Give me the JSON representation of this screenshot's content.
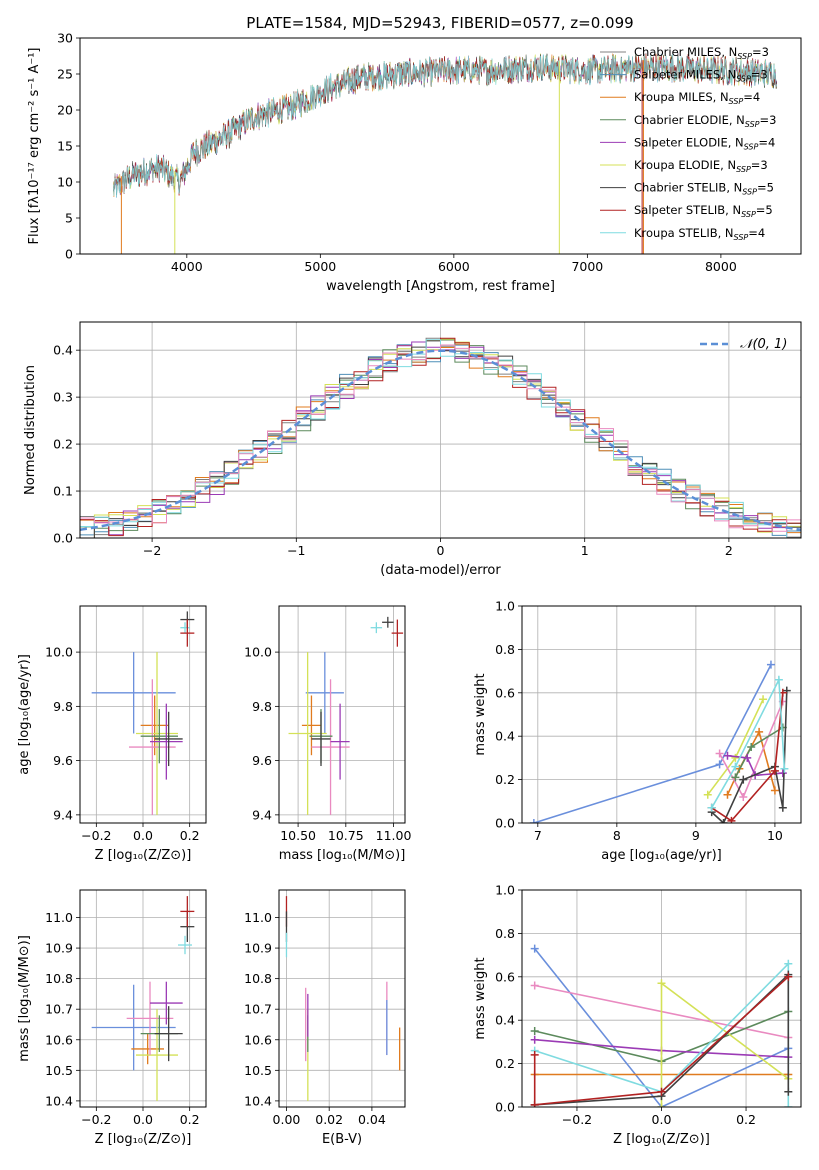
{
  "figure_title": "PLATE=1584, MJD=52943, FIBERID=0577, z=0.099",
  "colors": {
    "chabrier_miles": "#808080",
    "salpeter_miles": "#4f8fb8",
    "kroupa_miles": "#e07b1f",
    "chabrier_elodie": "#5c8a5c",
    "salpeter_elodie": "#9b3bb5",
    "kroupa_elodie": "#d4e157",
    "chabrier_stelib": "#404040",
    "salpeter_stelib": "#b22222",
    "kroupa_stelib": "#7fdbe0",
    "blue": "#6a8fdc",
    "pink": "#e98ac0",
    "dash": "#5b8fd6"
  },
  "legend_entries": [
    {
      "text": "Chabrier MILES, N",
      "sub": "SSP",
      "suffix": "=3",
      "color": "#808080"
    },
    {
      "text": "Salpeter MILES, N",
      "sub": "SSP",
      "suffix": "=3",
      "color": "#4f8fb8"
    },
    {
      "text": "Kroupa MILES, N",
      "sub": "SSP",
      "suffix": "=4",
      "color": "#e07b1f"
    },
    {
      "text": "Chabrier ELODIE, N",
      "sub": "SSP",
      "suffix": "=3",
      "color": "#5c8a5c"
    },
    {
      "text": "Salpeter ELODIE, N",
      "sub": "SSP",
      "suffix": "=4",
      "color": "#9b3bb5"
    },
    {
      "text": "Kroupa ELODIE, N",
      "sub": "SSP",
      "suffix": "=3",
      "color": "#d4e157"
    },
    {
      "text": "Chabrier STELIB, N",
      "sub": "SSP",
      "suffix": "=5",
      "color": "#404040"
    },
    {
      "text": "Salpeter STELIB, N",
      "sub": "SSP",
      "suffix": "=5",
      "color": "#b22222"
    },
    {
      "text": "Kroupa STELIB, N",
      "sub": "SSP",
      "suffix": "=4",
      "color": "#7fdbe0"
    }
  ],
  "chart_data": [
    {
      "id": "spectrum",
      "type": "line",
      "xlabel": "wavelength [Angstrom, rest frame]",
      "ylabel": "Flux [fλ10⁻¹⁷ erg cm⁻² s⁻¹ A⁻¹]",
      "xlim": [
        3200,
        8600
      ],
      "ylim": [
        0,
        30
      ],
      "xticks": [
        4000,
        5000,
        6000,
        7000,
        8000
      ],
      "yticks": [
        0,
        5,
        10,
        15,
        20,
        25,
        30
      ],
      "continuum": [
        [
          3450,
          9
        ],
        [
          3600,
          11
        ],
        [
          3800,
          12
        ],
        [
          3950,
          10
        ],
        [
          4050,
          14
        ],
        [
          4300,
          16.5
        ],
        [
          4500,
          19
        ],
        [
          4800,
          20.5
        ],
        [
          5000,
          22.5
        ],
        [
          5300,
          24.5
        ],
        [
          5600,
          25
        ],
        [
          6000,
          25.5
        ],
        [
          6300,
          25.5
        ],
        [
          6600,
          26
        ],
        [
          7000,
          25.5
        ],
        [
          7500,
          26
        ],
        [
          8000,
          25.5
        ],
        [
          8400,
          25
        ]
      ],
      "range": [
        3450,
        8420
      ],
      "drops": [
        {
          "x": 3510,
          "color": "#e07b1f"
        },
        {
          "x": 3910,
          "color": "#d4e157"
        },
        {
          "x": 6790,
          "color": "#d4e157"
        },
        {
          "x": 7410,
          "color": "#b22222"
        },
        {
          "x": 7420,
          "color": "#e07b1f"
        }
      ]
    },
    {
      "id": "residuals",
      "type": "histogram",
      "xlabel": "(data-model)/error",
      "ylabel": "Normed distribution",
      "xlim": [
        -2.5,
        2.5
      ],
      "ylim": [
        0,
        0.46
      ],
      "xticks": [
        -2,
        -1,
        0,
        1,
        2
      ],
      "yticks": [
        0.0,
        0.1,
        0.2,
        0.3,
        0.4
      ],
      "bin_width": 0.1,
      "legend": "𝒩(0, 1)",
      "series_colors": [
        "#808080",
        "#4f8fb8",
        "#e07b1f",
        "#5c8a5c",
        "#9b3bb5",
        "#d4e157",
        "#404040",
        "#b22222",
        "#7fdbe0",
        "#e98ac0"
      ]
    },
    {
      "id": "age_vs_Z",
      "type": "errorbar",
      "xlabel": "Z [log₁₀(Z/Z⊙)]",
      "ylabel": "age  [log₁₀(age/yr)]",
      "xlim": [
        -0.27,
        0.27
      ],
      "ylim": [
        9.37,
        10.17
      ],
      "xticks": [
        -0.2,
        0.0,
        0.2
      ],
      "yticks": [
        9.4,
        9.6,
        9.8,
        10.0
      ],
      "points": [
        {
          "x": -0.04,
          "y": 9.85,
          "xe": 0.18,
          "ye": 0.15,
          "c": "#6a8fdc"
        },
        {
          "x": 0.05,
          "y": 9.73,
          "xe": 0.06,
          "ye": 0.11,
          "c": "#e07b1f"
        },
        {
          "x": 0.06,
          "y": 9.7,
          "xe": 0.09,
          "ye": 0.3,
          "c": "#d4e157"
        },
        {
          "x": 0.04,
          "y": 9.65,
          "xe": 0.1,
          "ye": 0.25,
          "c": "#e98ac0"
        },
        {
          "x": 0.07,
          "y": 9.69,
          "xe": 0.08,
          "ye": 0.1,
          "c": "#5c8a5c"
        },
        {
          "x": 0.1,
          "y": 9.67,
          "xe": 0.07,
          "ye": 0.14,
          "c": "#9b3bb5"
        },
        {
          "x": 0.11,
          "y": 9.68,
          "xe": 0.06,
          "ye": 0.1,
          "c": "#404040"
        },
        {
          "x": 0.19,
          "y": 10.12,
          "xe": 0.03,
          "ye": 0.03,
          "c": "#404040"
        },
        {
          "x": 0.18,
          "y": 10.09,
          "xe": 0.02,
          "ye": 0.02,
          "c": "#7fdbe0"
        },
        {
          "x": 0.19,
          "y": 10.07,
          "xe": 0.03,
          "ye": 0.05,
          "c": "#b22222"
        }
      ]
    },
    {
      "id": "age_vs_mass",
      "type": "errorbar",
      "xlabel": "mass [log₁₀(M/M⊙)]",
      "ylabel": "",
      "xlim": [
        10.4,
        11.06
      ],
      "ylim": [
        9.37,
        10.17
      ],
      "xticks": [
        10.5,
        10.75,
        11.0
      ],
      "yticks": [
        9.4,
        9.6,
        9.8,
        10.0
      ],
      "points": [
        {
          "x": 10.64,
          "y": 9.85,
          "xe": 0.1,
          "ye": 0.15,
          "c": "#6a8fdc"
        },
        {
          "x": 10.57,
          "y": 9.73,
          "xe": 0.05,
          "ye": 0.11,
          "c": "#e07b1f"
        },
        {
          "x": 10.55,
          "y": 9.7,
          "xe": 0.1,
          "ye": 0.3,
          "c": "#d4e157"
        },
        {
          "x": 10.67,
          "y": 9.65,
          "xe": 0.1,
          "ye": 0.25,
          "c": "#e98ac0"
        },
        {
          "x": 10.62,
          "y": 9.69,
          "xe": 0.06,
          "ye": 0.1,
          "c": "#5c8a5c"
        },
        {
          "x": 10.72,
          "y": 9.67,
          "xe": 0.05,
          "ye": 0.14,
          "c": "#9b3bb5"
        },
        {
          "x": 10.62,
          "y": 9.68,
          "xe": 0.05,
          "ye": 0.1,
          "c": "#404040"
        },
        {
          "x": 10.97,
          "y": 10.11,
          "xe": 0.03,
          "ye": 0.02,
          "c": "#404040"
        },
        {
          "x": 10.91,
          "y": 10.09,
          "xe": 0.03,
          "ye": 0.02,
          "c": "#7fdbe0"
        },
        {
          "x": 11.02,
          "y": 10.07,
          "xe": 0.03,
          "ye": 0.05,
          "c": "#b22222"
        }
      ]
    },
    {
      "id": "weight_vs_age",
      "type": "line",
      "xlabel": "age  [log₁₀(age/yr)]",
      "ylabel": "mass weight",
      "xlim": [
        6.8,
        10.33
      ],
      "ylim": [
        0,
        1
      ],
      "xticks": [
        7,
        8,
        9,
        10
      ],
      "yticks": [
        0.0,
        0.2,
        0.4,
        0.6,
        0.8,
        1.0
      ],
      "series": [
        {
          "c": "#6a8fdc",
          "pts": [
            [
              6.95,
              0.0
            ],
            [
              9.3,
              0.27
            ],
            [
              9.95,
              0.73
            ]
          ]
        },
        {
          "c": "#e07b1f",
          "pts": [
            [
              9.4,
              0.13
            ],
            [
              9.55,
              0.25
            ],
            [
              9.8,
              0.42
            ],
            [
              10.0,
              0.15
            ]
          ]
        },
        {
          "c": "#d4e157",
          "pts": [
            [
              9.15,
              0.13
            ],
            [
              9.5,
              0.3
            ],
            [
              9.85,
              0.57
            ]
          ]
        },
        {
          "c": "#e98ac0",
          "pts": [
            [
              9.3,
              0.32
            ],
            [
              9.6,
              0.12
            ],
            [
              10.1,
              0.56
            ]
          ]
        },
        {
          "c": "#5c8a5c",
          "pts": [
            [
              9.5,
              0.21
            ],
            [
              9.7,
              0.35
            ],
            [
              10.1,
              0.44
            ]
          ]
        },
        {
          "c": "#9b3bb5",
          "pts": [
            [
              9.4,
              0.31
            ],
            [
              9.65,
              0.3
            ],
            [
              9.75,
              0.22
            ],
            [
              10.1,
              0.23
            ]
          ]
        },
        {
          "c": "#404040",
          "pts": [
            [
              9.2,
              0.05
            ],
            [
              9.35,
              0.0
            ],
            [
              9.6,
              0.2
            ],
            [
              10.0,
              0.26
            ],
            [
              10.1,
              0.07
            ],
            [
              10.15,
              0.61
            ]
          ]
        },
        {
          "c": "#b22222",
          "pts": [
            [
              9.2,
              0.07
            ],
            [
              9.45,
              0.01
            ],
            [
              10.0,
              0.24
            ],
            [
              10.1,
              0.6
            ]
          ]
        },
        {
          "c": "#7fdbe0",
          "pts": [
            [
              9.2,
              0.07
            ],
            [
              9.5,
              0.26
            ],
            [
              10.05,
              0.66
            ],
            [
              10.12,
              0.25
            ]
          ]
        }
      ]
    },
    {
      "id": "mass_vs_Z",
      "type": "errorbar",
      "xlabel": "Z [log₁₀(Z/Z⊙)]",
      "ylabel": "mass [log₁₀(M/M⊙)]",
      "xlim": [
        -0.27,
        0.27
      ],
      "ylim": [
        10.38,
        11.09
      ],
      "xticks": [
        -0.2,
        0.0,
        0.2
      ],
      "yticks": [
        10.4,
        10.5,
        10.6,
        10.7,
        10.8,
        10.9,
        11.0
      ],
      "points": [
        {
          "x": -0.04,
          "y": 10.64,
          "xe": 0.18,
          "ye": 0.14,
          "c": "#6a8fdc"
        },
        {
          "x": 0.02,
          "y": 10.57,
          "xe": 0.07,
          "ye": 0.05,
          "c": "#e07b1f"
        },
        {
          "x": 0.06,
          "y": 10.55,
          "xe": 0.09,
          "ye": 0.15,
          "c": "#d4e157"
        },
        {
          "x": 0.03,
          "y": 10.67,
          "xe": 0.1,
          "ye": 0.12,
          "c": "#e98ac0"
        },
        {
          "x": 0.07,
          "y": 10.62,
          "xe": 0.08,
          "ye": 0.06,
          "c": "#5c8a5c"
        },
        {
          "x": 0.1,
          "y": 10.72,
          "xe": 0.07,
          "ye": 0.07,
          "c": "#9b3bb5"
        },
        {
          "x": 0.11,
          "y": 10.62,
          "xe": 0.06,
          "ye": 0.09,
          "c": "#404040"
        },
        {
          "x": 0.19,
          "y": 10.97,
          "xe": 0.03,
          "ye": 0.05,
          "c": "#404040"
        },
        {
          "x": 0.18,
          "y": 10.91,
          "xe": 0.03,
          "ye": 0.03,
          "c": "#7fdbe0"
        },
        {
          "x": 0.19,
          "y": 11.02,
          "xe": 0.03,
          "ye": 0.05,
          "c": "#b22222"
        }
      ]
    },
    {
      "id": "mass_vs_ebv",
      "type": "errorbar",
      "xlabel": "E(B-V)",
      "ylabel": "",
      "xlim": [
        -0.0035,
        0.0555
      ],
      "ylim": [
        10.38,
        11.09
      ],
      "xticks": [
        0.0,
        0.02,
        0.04
      ],
      "yticks": [
        10.4,
        10.5,
        10.6,
        10.7,
        10.8,
        10.9,
        11.0
      ],
      "points": [
        {
          "x": 0.0,
          "y": 11.02,
          "xe": 0,
          "ye": 0.05,
          "c": "#b22222"
        },
        {
          "x": 0.0,
          "y": 10.97,
          "xe": 0,
          "ye": 0.05,
          "c": "#404040"
        },
        {
          "x": 0.0,
          "y": 10.91,
          "xe": 0,
          "ye": 0.04,
          "c": "#7fdbe0"
        },
        {
          "x": 0.01,
          "y": 10.55,
          "xe": 0,
          "ye": 0.15,
          "c": "#d4e157"
        },
        {
          "x": 0.009,
          "y": 10.65,
          "xe": 0,
          "ye": 0.12,
          "c": "#e98ac0"
        },
        {
          "x": 0.01,
          "y": 10.62,
          "xe": 0,
          "ye": 0.06,
          "c": "#5c8a5c"
        },
        {
          "x": 0.01,
          "y": 10.68,
          "xe": 0,
          "ye": 0.07,
          "c": "#9b3bb5"
        },
        {
          "x": 0.047,
          "y": 10.67,
          "xe": 0,
          "ye": 0.12,
          "c": "#e98ac0"
        },
        {
          "x": 0.047,
          "y": 10.64,
          "xe": 0,
          "ye": 0.09,
          "c": "#6a8fdc"
        },
        {
          "x": 0.053,
          "y": 10.57,
          "xe": 0,
          "ye": 0.07,
          "c": "#e07b1f"
        }
      ]
    },
    {
      "id": "weight_vs_Z",
      "type": "line",
      "xlabel": "Z [log₁₀(Z/Z⊙)]",
      "ylabel": "mass weight",
      "xlim": [
        -0.33,
        0.33
      ],
      "ylim": [
        0,
        1
      ],
      "xticks": [
        -0.2,
        0.0,
        0.2
      ],
      "yticks": [
        0.0,
        0.2,
        0.4,
        0.6,
        0.8,
        1.0
      ],
      "series": [
        {
          "c": "#6a8fdc",
          "pts": [
            [
              -0.3,
              0.73
            ],
            [
              0.0,
              0.0
            ],
            [
              0.3,
              0.27
            ]
          ]
        },
        {
          "c": "#e98ac0",
          "pts": [
            [
              -0.3,
              0.56
            ],
            [
              0.3,
              0.32
            ]
          ]
        },
        {
          "c": "#5c8a5c",
          "pts": [
            [
              -0.3,
              0.35
            ],
            [
              0.0,
              0.21
            ],
            [
              0.3,
              0.44
            ]
          ]
        },
        {
          "c": "#9b3bb5",
          "pts": [
            [
              -0.3,
              0.31
            ],
            [
              0.0,
              0.26
            ],
            [
              0.3,
              0.23
            ]
          ]
        },
        {
          "c": "#e07b1f",
          "pts": [
            [
              -0.3,
              0.15
            ],
            [
              0.3,
              0.15
            ]
          ]
        },
        {
          "c": "#d4e157",
          "pts": [
            [
              0.0,
              0.0
            ],
            [
              0.0,
              0.57
            ],
            [
              0.3,
              0.13
            ]
          ]
        },
        {
          "c": "#7fdbe0",
          "pts": [
            [
              -0.3,
              0.26
            ],
            [
              0.0,
              0.07
            ],
            [
              0.3,
              0.66
            ],
            [
              0.3,
              0.0
            ]
          ]
        },
        {
          "c": "#404040",
          "pts": [
            [
              -0.3,
              0.01
            ],
            [
              0.0,
              0.05
            ],
            [
              0.3,
              0.61
            ],
            [
              0.3,
              0.07
            ]
          ]
        },
        {
          "c": "#b22222",
          "pts": [
            [
              -0.3,
              0.24
            ],
            [
              -0.3,
              0.01
            ],
            [
              0.0,
              0.07
            ],
            [
              0.3,
              0.6
            ]
          ]
        }
      ]
    }
  ]
}
